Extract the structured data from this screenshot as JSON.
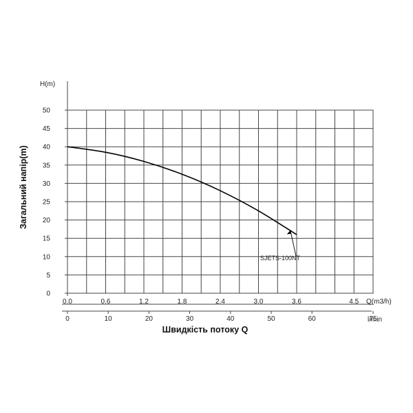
{
  "chart_data": {
    "type": "line",
    "ylabel": "Загальний напір(m)",
    "yunit": "H(m)",
    "xlabel": "Швидкість потоку Q",
    "x1unit": "Q(m3/h)",
    "x2unit": "l/min",
    "ylim": [
      0,
      50
    ],
    "yticks": [
      "0",
      "5",
      "10",
      "15",
      "20",
      "25",
      "30",
      "35",
      "40",
      "45",
      "50"
    ],
    "xlim": [
      0,
      4.8
    ],
    "x1ticks": [
      {
        "value": 0.0,
        "label": "0.0"
      },
      {
        "value": 0.6,
        "label": "0.6"
      },
      {
        "value": 1.2,
        "label": "1.2"
      },
      {
        "value": 1.8,
        "label": "1.8"
      },
      {
        "value": 2.4,
        "label": "2.4"
      },
      {
        "value": 3.0,
        "label": "3.0"
      },
      {
        "value": 3.6,
        "label": "3.6"
      },
      {
        "value": 4.5,
        "label": "4.5"
      }
    ],
    "x2ticks": [
      {
        "value": 0,
        "label": "0"
      },
      {
        "value": 10,
        "label": "10"
      },
      {
        "value": 20,
        "label": "20"
      },
      {
        "value": 30,
        "label": "30"
      },
      {
        "value": 40,
        "label": "40"
      },
      {
        "value": 50,
        "label": "50"
      },
      {
        "value": 60,
        "label": "60"
      },
      {
        "value": 75,
        "label": "75"
      }
    ],
    "grid": true,
    "series": [
      {
        "name": "SJETS-100NT",
        "color": "#000000",
        "x": [
          0.0,
          0.6,
          1.2,
          1.8,
          2.4,
          3.0,
          3.6
        ],
        "y": [
          40,
          38.5,
          36,
          32.5,
          28,
          22.5,
          16
        ]
      }
    ]
  }
}
